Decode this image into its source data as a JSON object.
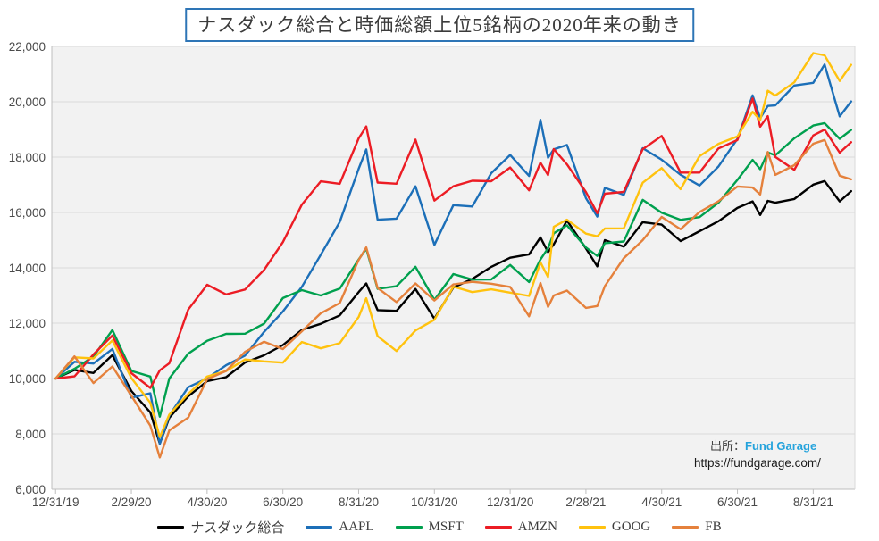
{
  "title": "ナスダック総合と時価総額上位5銘柄の2020年来の動き",
  "source": {
    "prefix": "出所：",
    "brand": "Fund Garage",
    "url": "https://fundgarage.com/"
  },
  "colors": {
    "title_border": "#2e75b6",
    "plot_bg": "#f2f2f2",
    "gridline": "#dadada",
    "axis": "#bfbfbf",
    "tick_text": "#4a4a4a"
  },
  "chart_data": {
    "type": "line",
    "title": "ナスダック総合と時価総額上位5銘柄の2020年来の動き",
    "xlabel": "",
    "ylabel": "",
    "ylim": [
      6000,
      22000
    ],
    "xlim_months": [
      -0.1,
      21.1
    ],
    "grid": "horizontal",
    "legend_position": "bottom",
    "y_tick_labels": [
      "22,000",
      "20,000",
      "18,000",
      "16,000",
      "14,000",
      "12,000",
      "10,000",
      "8,000",
      "6,000"
    ],
    "y_tick_values": [
      22000,
      20000,
      18000,
      16000,
      14000,
      12000,
      10000,
      8000,
      6000
    ],
    "x_tick_labels": [
      "12/31/19",
      "2/29/20",
      "4/30/20",
      "6/30/20",
      "8/31/20",
      "10/31/20",
      "12/31/20",
      "2/28/21",
      "4/30/21",
      "6/30/21",
      "8/31/21"
    ],
    "x_tick_months": [
      0,
      2,
      4,
      6,
      8,
      10,
      12,
      14,
      16,
      18,
      20
    ],
    "x_months": [
      0,
      0.5,
      1,
      1.5,
      2,
      2.5,
      2.75,
      3,
      3.5,
      4,
      4.5,
      5,
      5.5,
      6,
      6.5,
      7,
      7.5,
      8,
      8.2,
      8.5,
      9,
      9.5,
      10,
      10.5,
      11,
      11.5,
      12,
      12.5,
      12.8,
      13,
      13.15,
      13.5,
      14,
      14.3,
      14.5,
      15,
      15.5,
      16,
      16.5,
      17,
      17.5,
      18,
      18.4,
      18.6,
      18.8,
      19,
      19.5,
      20,
      20.3,
      20.7,
      21
    ],
    "series": [
      {
        "name": "ナスダック総合",
        "color": "#000000",
        "values": [
          10000,
          10310,
          10199,
          10845,
          9548,
          8777,
          7646,
          8582,
          9354,
          9907,
          10047,
          10576,
          10840,
          11211,
          11759,
          11976,
          12281,
          13124,
          13437,
          12472,
          12446,
          13236,
          12161,
          13290,
          13596,
          14037,
          14364,
          14487,
          15100,
          14568,
          14850,
          15710,
          14703,
          14053,
          15001,
          14764,
          15647,
          15562,
          14967,
          15323,
          15685,
          16165,
          16400,
          15910,
          16420,
          16353,
          16488,
          17007,
          17135,
          16399,
          16771
        ]
      },
      {
        "name": "AAPL",
        "color": "#1c6fb8",
        "values": [
          10000,
          10602,
          10541,
          11067,
          9310,
          9466,
          7641,
          8660,
          9687,
          10005,
          10480,
          10829,
          11681,
          12424,
          13312,
          14475,
          15654,
          17578,
          18278,
          15739,
          15776,
          16946,
          14829,
          16264,
          16217,
          17420,
          18076,
          17320,
          19350,
          17976,
          18280,
          18440,
          16518,
          15851,
          16890,
          16640,
          18322,
          17908,
          17362,
          16975,
          17660,
          18657,
          20230,
          19406,
          19850,
          19869,
          20586,
          20683,
          21345,
          19472,
          20014
        ]
      },
      {
        "name": "MSFT",
        "color": "#00a04e",
        "values": [
          10000,
          10350,
          10795,
          11753,
          10273,
          10072,
          8623,
          10001,
          10899,
          11364,
          11614,
          11620,
          11981,
          12905,
          13192,
          13000,
          13247,
          14301,
          14689,
          13239,
          13337,
          14039,
          12839,
          13774,
          13574,
          13578,
          14104,
          13484,
          14300,
          14709,
          15250,
          15535,
          14735,
          14430,
          14890,
          14951,
          16456,
          15991,
          15736,
          15833,
          16353,
          17178,
          17900,
          17565,
          18170,
          18066,
          18681,
          19143,
          19230,
          18662,
          18982
        ]
      },
      {
        "name": "AMZN",
        "color": "#ec1c24",
        "values": [
          10000,
          10077,
          10871,
          11553,
          10194,
          9660,
          10298,
          10551,
          12489,
          13388,
          13040,
          13217,
          13922,
          14930,
          16283,
          17126,
          17036,
          18676,
          19111,
          17080,
          17040,
          18632,
          16430,
          16944,
          17144,
          17128,
          17626,
          16799,
          17800,
          17351,
          18290,
          17738,
          16738,
          15975,
          16677,
          16744,
          18286,
          18764,
          17441,
          17442,
          18312,
          18617,
          20120,
          19100,
          19480,
          18010,
          17542,
          18783,
          18992,
          18160,
          18538
        ]
      },
      {
        "name": "GOOG",
        "color": "#ffc20e",
        "values": [
          10000,
          10764,
          10727,
          11374,
          10017,
          9123,
          7885,
          8697,
          9442,
          10072,
          10271,
          10687,
          10620,
          10573,
          11320,
          11091,
          11277,
          12223,
          12900,
          11529,
          10992,
          11736,
          12124,
          13320,
          13122,
          13222,
          13103,
          12985,
          14200,
          13667,
          15480,
          15738,
          15235,
          15140,
          15422,
          15427,
          17073,
          17603,
          16841,
          18037,
          18482,
          18745,
          19640,
          19340,
          20400,
          20227,
          20704,
          21759,
          21676,
          20751,
          21336
        ]
      },
      {
        "name": "FB",
        "color": "#e5813c",
        "values": [
          10000,
          10800,
          9837,
          10435,
          9377,
          8296,
          7150,
          8127,
          8588,
          9974,
          10274,
          10966,
          11328,
          11063,
          11707,
          12359,
          12727,
          14285,
          14738,
          13270,
          12760,
          13435,
          12819,
          13399,
          13494,
          13425,
          13309,
          12247,
          13450,
          12586,
          13000,
          13179,
          12552,
          12620,
          13340,
          14350,
          15000,
          15838,
          15393,
          16016,
          16407,
          16940,
          16900,
          16650,
          18187,
          17359,
          17710,
          18484,
          18620,
          17330,
          17196
        ]
      }
    ]
  }
}
